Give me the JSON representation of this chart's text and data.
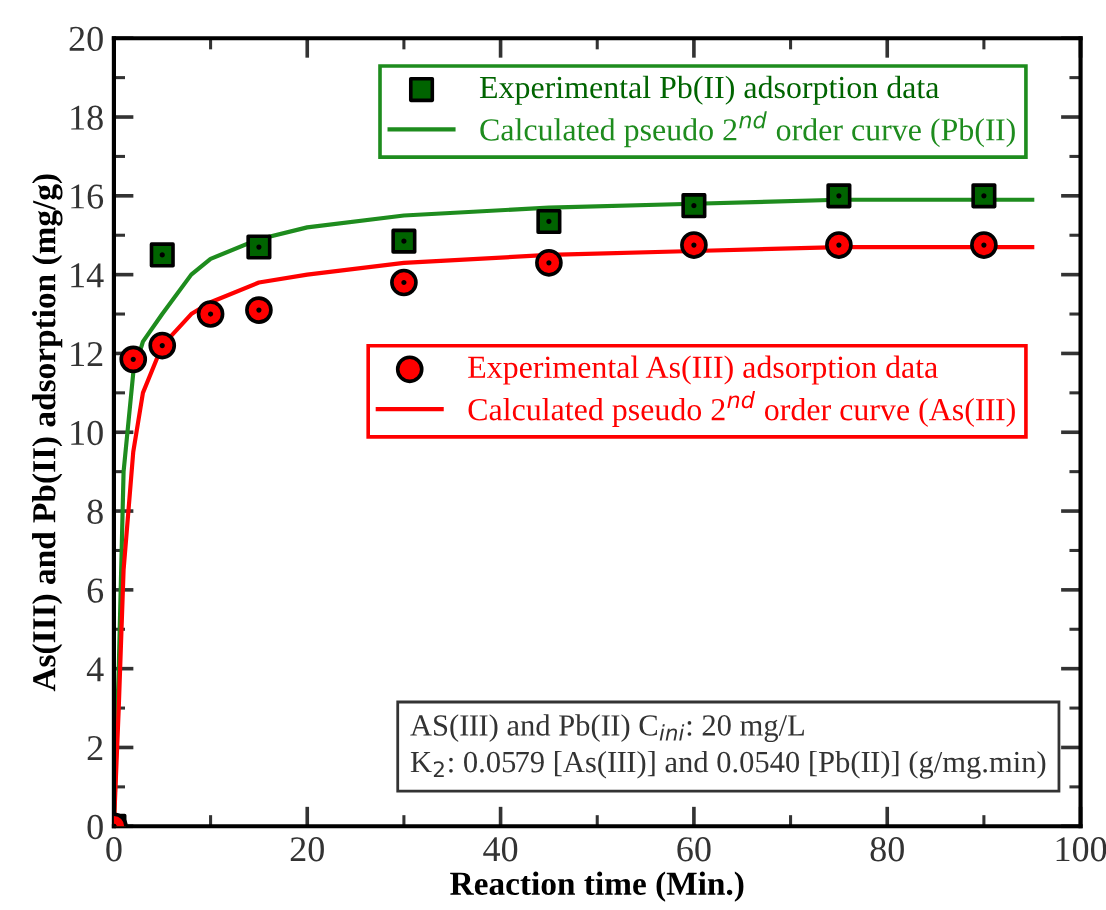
{
  "chart_data": {
    "type": "scatter",
    "xlabel": "Reaction time (Min.)",
    "ylabel": "As(III) and Pb(II) adsorption (mg/g)",
    "xlim": [
      0,
      100
    ],
    "ylim": [
      0,
      20
    ],
    "xticks": [
      0,
      20,
      40,
      60,
      80,
      100
    ],
    "yticks": [
      0,
      2,
      4,
      6,
      8,
      10,
      12,
      14,
      16,
      18,
      20
    ],
    "grid": false,
    "legend": "top right",
    "series": [
      {
        "name": "Experimental Pb(II) adsorption data",
        "marker": "square",
        "color": "#006400",
        "x": [
          0,
          5,
          15,
          30,
          45,
          60,
          75,
          90
        ],
        "values": [
          0,
          14.5,
          14.7,
          14.85,
          15.35,
          15.75,
          16.0,
          16.0
        ]
      },
      {
        "name": "Calculated pseudo 2$^{nd}$ order curve (Pb(II)",
        "type": "line",
        "marker": "none",
        "color": "#1e8c1e",
        "x": [
          0,
          0.5,
          1,
          2,
          3,
          5,
          8,
          10,
          15,
          20,
          30,
          45,
          60,
          75,
          95
        ],
        "values": [
          0,
          4,
          9,
          11.5,
          12.3,
          13.0,
          14.0,
          14.4,
          14.9,
          15.2,
          15.5,
          15.7,
          15.8,
          15.9,
          15.9
        ]
      },
      {
        "name": "Experimental As(III) adsorption data",
        "marker": "circle",
        "color": "#ff0000",
        "x": [
          0,
          2,
          5,
          10,
          15,
          30,
          45,
          60,
          75,
          90
        ],
        "values": [
          0,
          11.85,
          12.2,
          13.0,
          13.1,
          13.8,
          14.3,
          14.75,
          14.75,
          14.75
        ]
      },
      {
        "name": "Calculated pseudo 2$^{nd}$ order curve (As(III)",
        "type": "line",
        "marker": "none",
        "color": "#ff0000",
        "x": [
          0,
          0.5,
          1,
          2,
          3,
          5,
          8,
          10,
          15,
          20,
          30,
          45,
          60,
          75,
          95
        ],
        "values": [
          0,
          3,
          6.5,
          9.5,
          11,
          12.2,
          13.0,
          13.3,
          13.8,
          14.0,
          14.3,
          14.5,
          14.6,
          14.7,
          14.7
        ]
      }
    ],
    "annotations": [
      "AS(III) and Pb(II) C$_{ini}$: 20 mg/L",
      "K$_{2}$: 0.0579 [As(III)] and 0.0540 [Pb(II)] (g/mg.min)"
    ]
  }
}
